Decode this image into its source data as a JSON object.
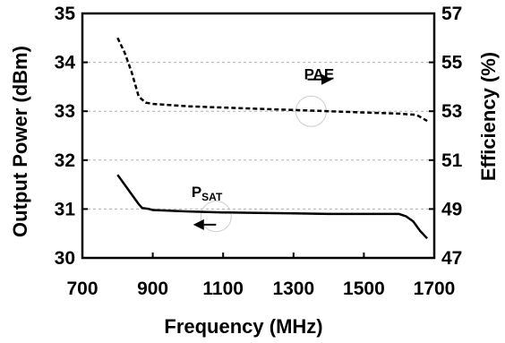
{
  "chart_data": {
    "type": "line",
    "title": "",
    "xlabel": "Frequency (MHz)",
    "ylabel_left": "Output Power (dBm)",
    "ylabel_right": "Efficiency (%)",
    "xlim": [
      700,
      1700
    ],
    "ylim_left": [
      30,
      35
    ],
    "ylim_right": [
      47,
      57
    ],
    "x_ticks": [
      "700",
      "900",
      "1100",
      "1300",
      "1500",
      "1700"
    ],
    "y_left_ticks": [
      "30",
      "31",
      "32",
      "33",
      "34",
      "35"
    ],
    "y_right_ticks": [
      "47",
      "49",
      "51",
      "53",
      "55",
      "57"
    ],
    "grid": true,
    "series": [
      {
        "name": "PAE",
        "name_main": "PAE",
        "name_sub": "",
        "axis": "right",
        "style": "dashed",
        "color": "#000000",
        "label_value_x": 1330,
        "label_value_y": 54.3,
        "x": [
          800,
          820,
          840,
          860,
          880,
          900,
          1000,
          1100,
          1200,
          1300,
          1400,
          1500,
          1600,
          1650,
          1680
        ],
        "values": [
          56.0,
          55.4,
          54.6,
          53.6,
          53.35,
          53.3,
          53.2,
          53.15,
          53.1,
          53.05,
          53.0,
          52.95,
          52.9,
          52.85,
          52.6
        ]
      },
      {
        "name": "PSAT",
        "name_main": "P",
        "name_sub": "SAT",
        "axis": "left",
        "style": "solid",
        "color": "#000000",
        "label_value_x": 1010,
        "label_value_y": 31.25,
        "x": [
          800,
          820,
          840,
          860,
          870,
          890,
          900,
          1000,
          1100,
          1200,
          1300,
          1400,
          1500,
          1600,
          1620,
          1640,
          1660,
          1680
        ],
        "values": [
          31.7,
          31.5,
          31.3,
          31.1,
          31.02,
          31.0,
          30.98,
          30.95,
          30.93,
          30.92,
          30.91,
          30.9,
          30.9,
          30.9,
          30.85,
          30.75,
          30.55,
          30.4
        ]
      }
    ],
    "arrows": [
      {
        "series": "PAE",
        "direction": "right",
        "from_x": 1340,
        "to_x": 1410,
        "y_value": 54.3,
        "axis": "right"
      },
      {
        "series": "PSAT",
        "direction": "left",
        "from_x": 1080,
        "to_x": 1015,
        "y_value": 30.68,
        "axis": "left"
      }
    ],
    "circles": [
      {
        "series": "PAE",
        "x": 1350,
        "y_value": 53.0,
        "axis": "right"
      },
      {
        "series": "PSAT",
        "x": 1080,
        "y_value": 30.85,
        "axis": "left"
      }
    ]
  }
}
